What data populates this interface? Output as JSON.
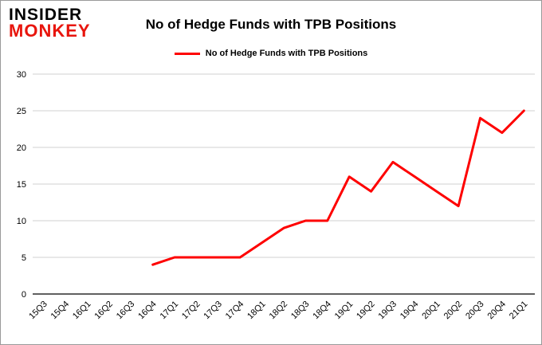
{
  "logo": {
    "line1": "INSIDER",
    "line2": "MONKEY"
  },
  "header": {
    "title": "No of Hedge Funds with TPB Positions"
  },
  "legend": {
    "label": "No of Hedge Funds with TPB Positions"
  },
  "colors": {
    "line": "#fe0000",
    "logo_red": "#e8150d",
    "grid": "#d0d0d0",
    "axis": "#000000",
    "text": "#000000"
  },
  "chart_data": {
    "type": "line",
    "title": "No of Hedge Funds with TPB Positions",
    "categories": [
      "15Q3",
      "15Q4",
      "16Q1",
      "16Q2",
      "16Q3",
      "16Q4",
      "17Q1",
      "17Q2",
      "17Q3",
      "17Q4",
      "18Q1",
      "18Q2",
      "18Q3",
      "18Q4",
      "19Q1",
      "19Q2",
      "19Q3",
      "19Q4",
      "20Q1",
      "20Q2",
      "20Q3",
      "20Q4",
      "21Q1"
    ],
    "series": [
      {
        "name": "No of Hedge Funds with TPB Positions",
        "color": "#fe0000",
        "values": [
          null,
          null,
          null,
          null,
          null,
          4,
          5,
          5,
          5,
          5,
          7,
          9,
          10,
          10,
          16,
          14,
          18,
          16,
          14,
          12,
          24,
          22,
          25
        ]
      }
    ],
    "xlabel": "",
    "ylabel": "",
    "ylim": [
      0,
      30
    ],
    "ytick_step": 5,
    "grid": true,
    "legend_position": "top"
  }
}
